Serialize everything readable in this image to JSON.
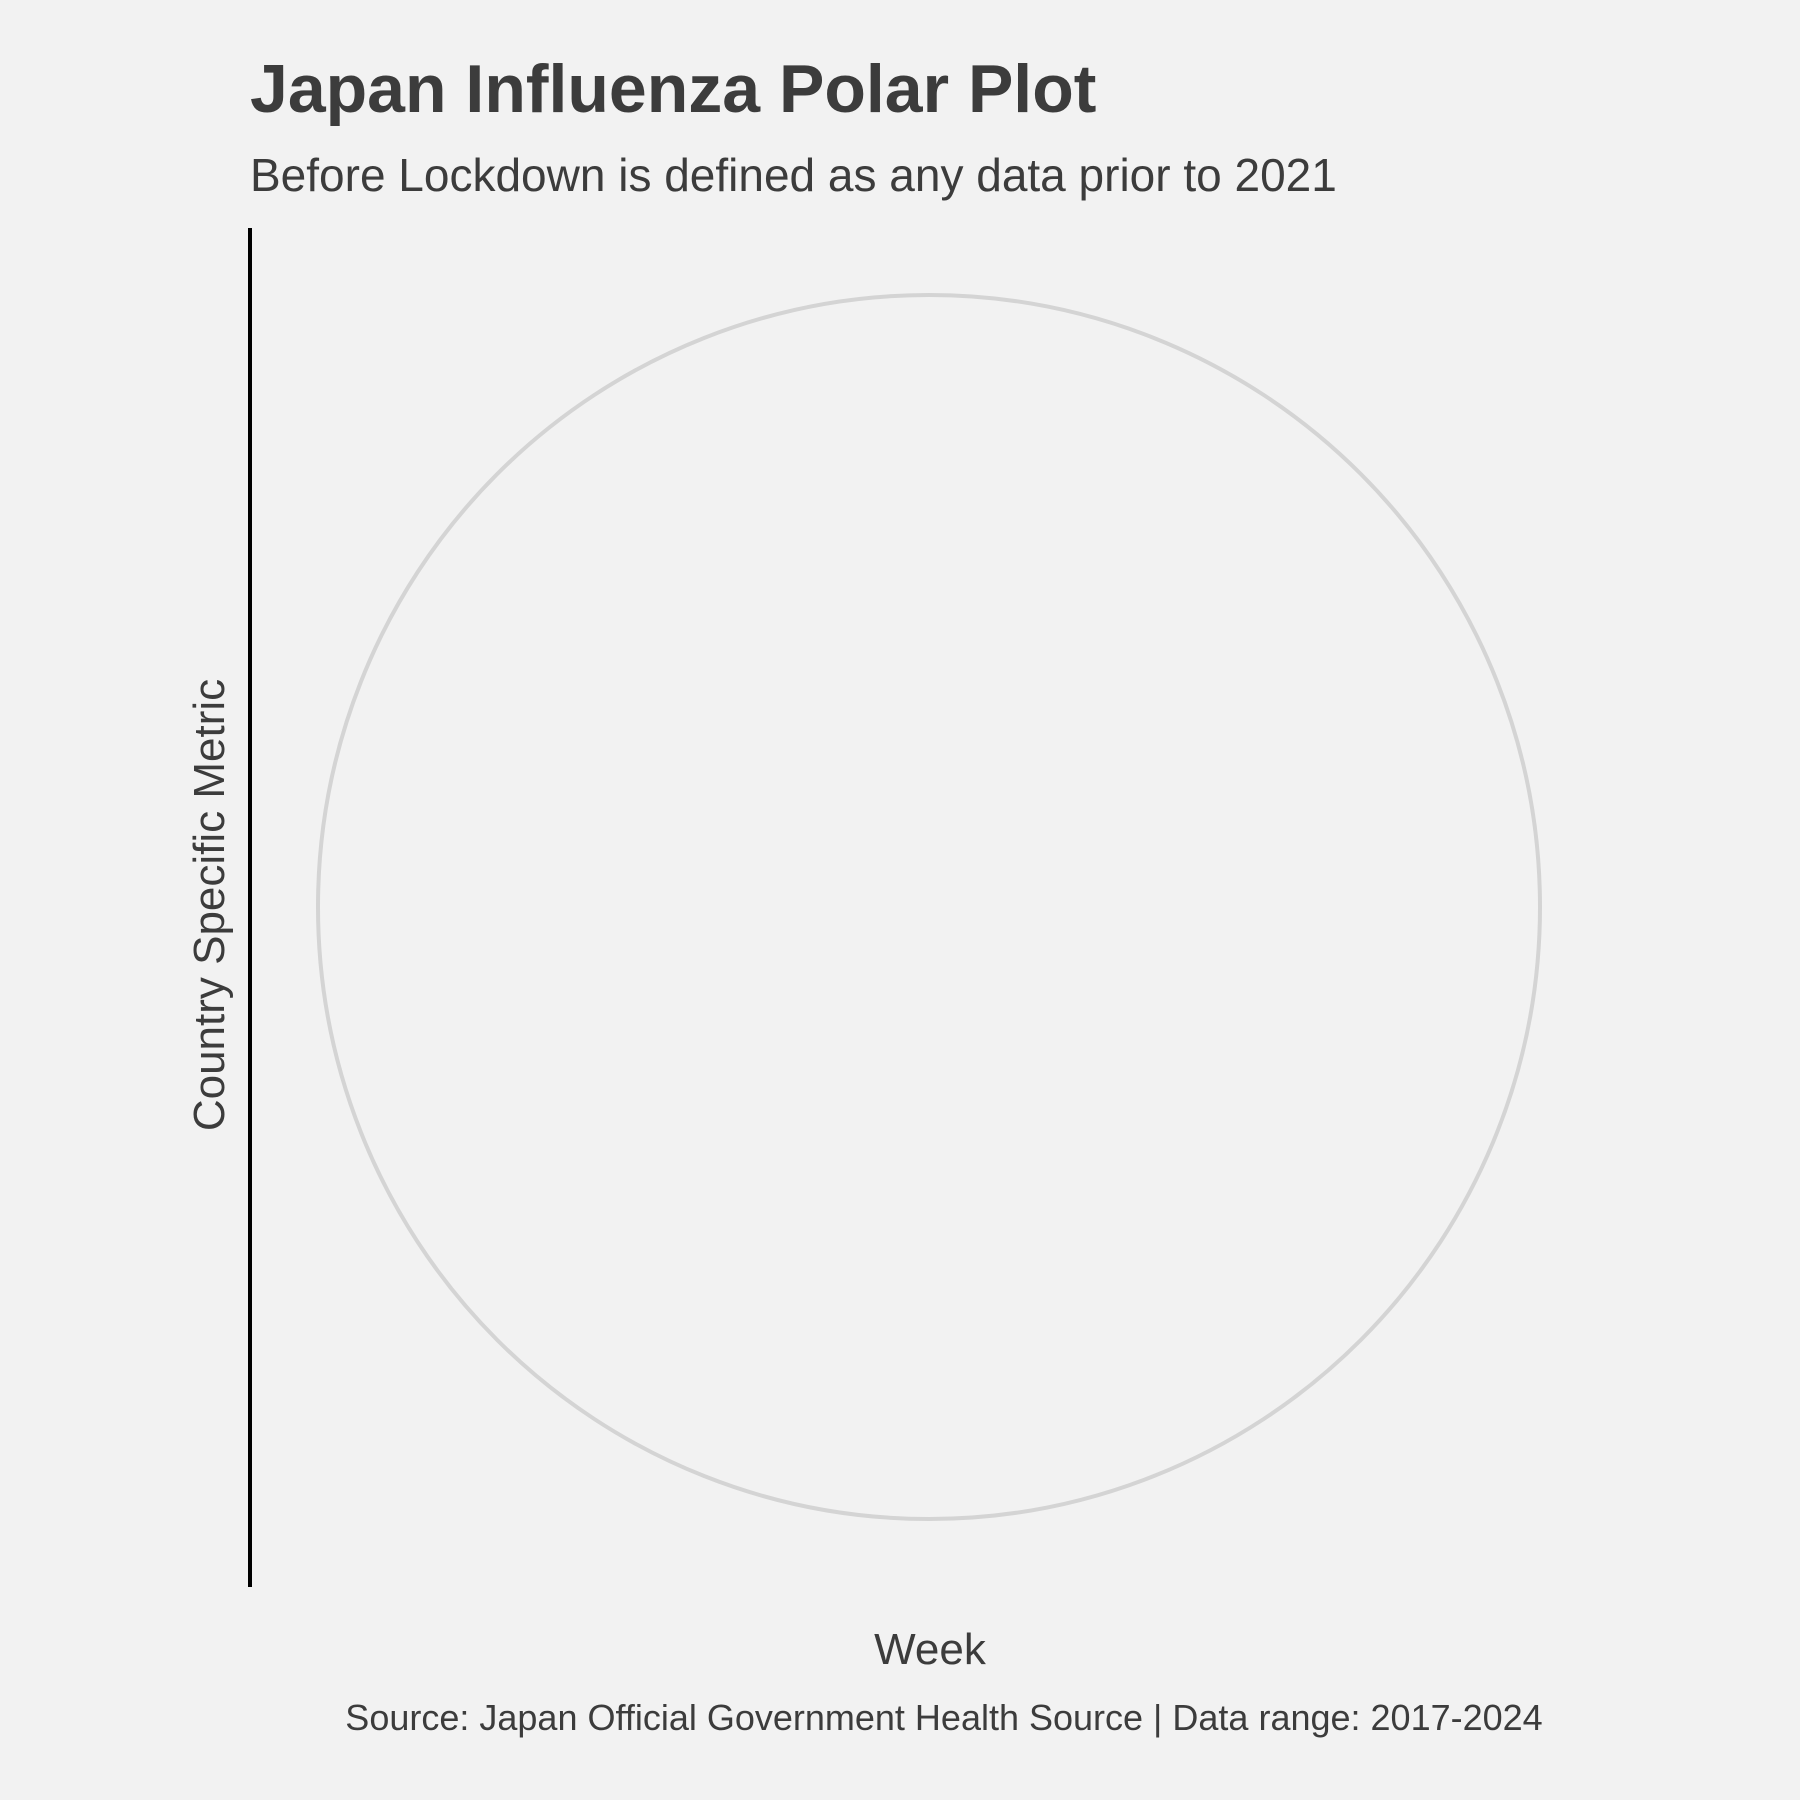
{
  "chart_data": {
    "type": "line",
    "coord": "polar",
    "title": "Japan Influenza Polar Plot",
    "subtitle": "Before Lockdown is defined as any data prior to 2021",
    "xlabel": "Week",
    "ylabel": "Country Specific Metric",
    "caption": "Source: Japan Official Government Health Source | Data range: 2017-2024",
    "series": [],
    "grid": true,
    "colors": {
      "background": "#f2f2f2",
      "grid": "#d4d4d4",
      "axis_line": "#000000",
      "text": "#3c3c3c"
    }
  }
}
